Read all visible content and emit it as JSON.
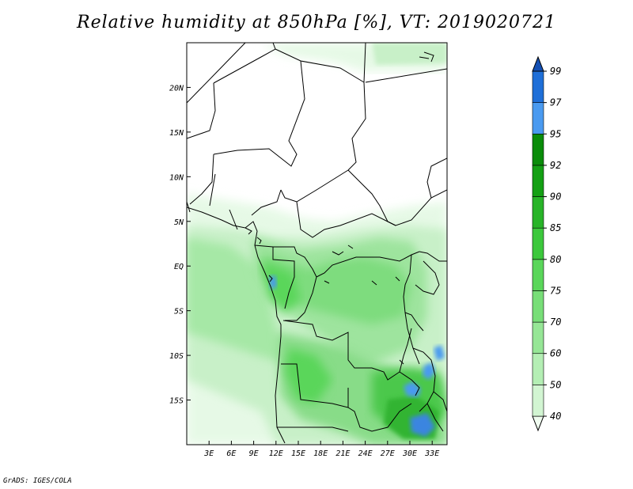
{
  "title": "Relative humidity at 850hPa [%], VT: 2019020721",
  "footer": "GrADS: IGES/COLA",
  "map": {
    "lon_range": [
      0,
      35
    ],
    "lat_range": [
      -20,
      25
    ],
    "lon_ticks": [
      "3E",
      "6E",
      "9E",
      "12E",
      "15E",
      "18E",
      "21E",
      "24E",
      "27E",
      "30E",
      "33E"
    ],
    "lat_ticks": [
      "20N",
      "15N",
      "10N",
      "5N",
      "EQ",
      "5S",
      "10S",
      "15S"
    ]
  },
  "colorbar": {
    "levels": [
      "40",
      "50",
      "60",
      "70",
      "75",
      "80",
      "85",
      "90",
      "92",
      "95",
      "97",
      "99"
    ],
    "colors": [
      "#f0fcf0",
      "#d2f5d2",
      "#b4eeb4",
      "#96e696",
      "#78de78",
      "#5ad65a",
      "#3cc83c",
      "#28b428",
      "#14a014",
      "#0a8c0a",
      "#4a9af0",
      "#1f6fd8",
      "#1450b4"
    ]
  }
}
